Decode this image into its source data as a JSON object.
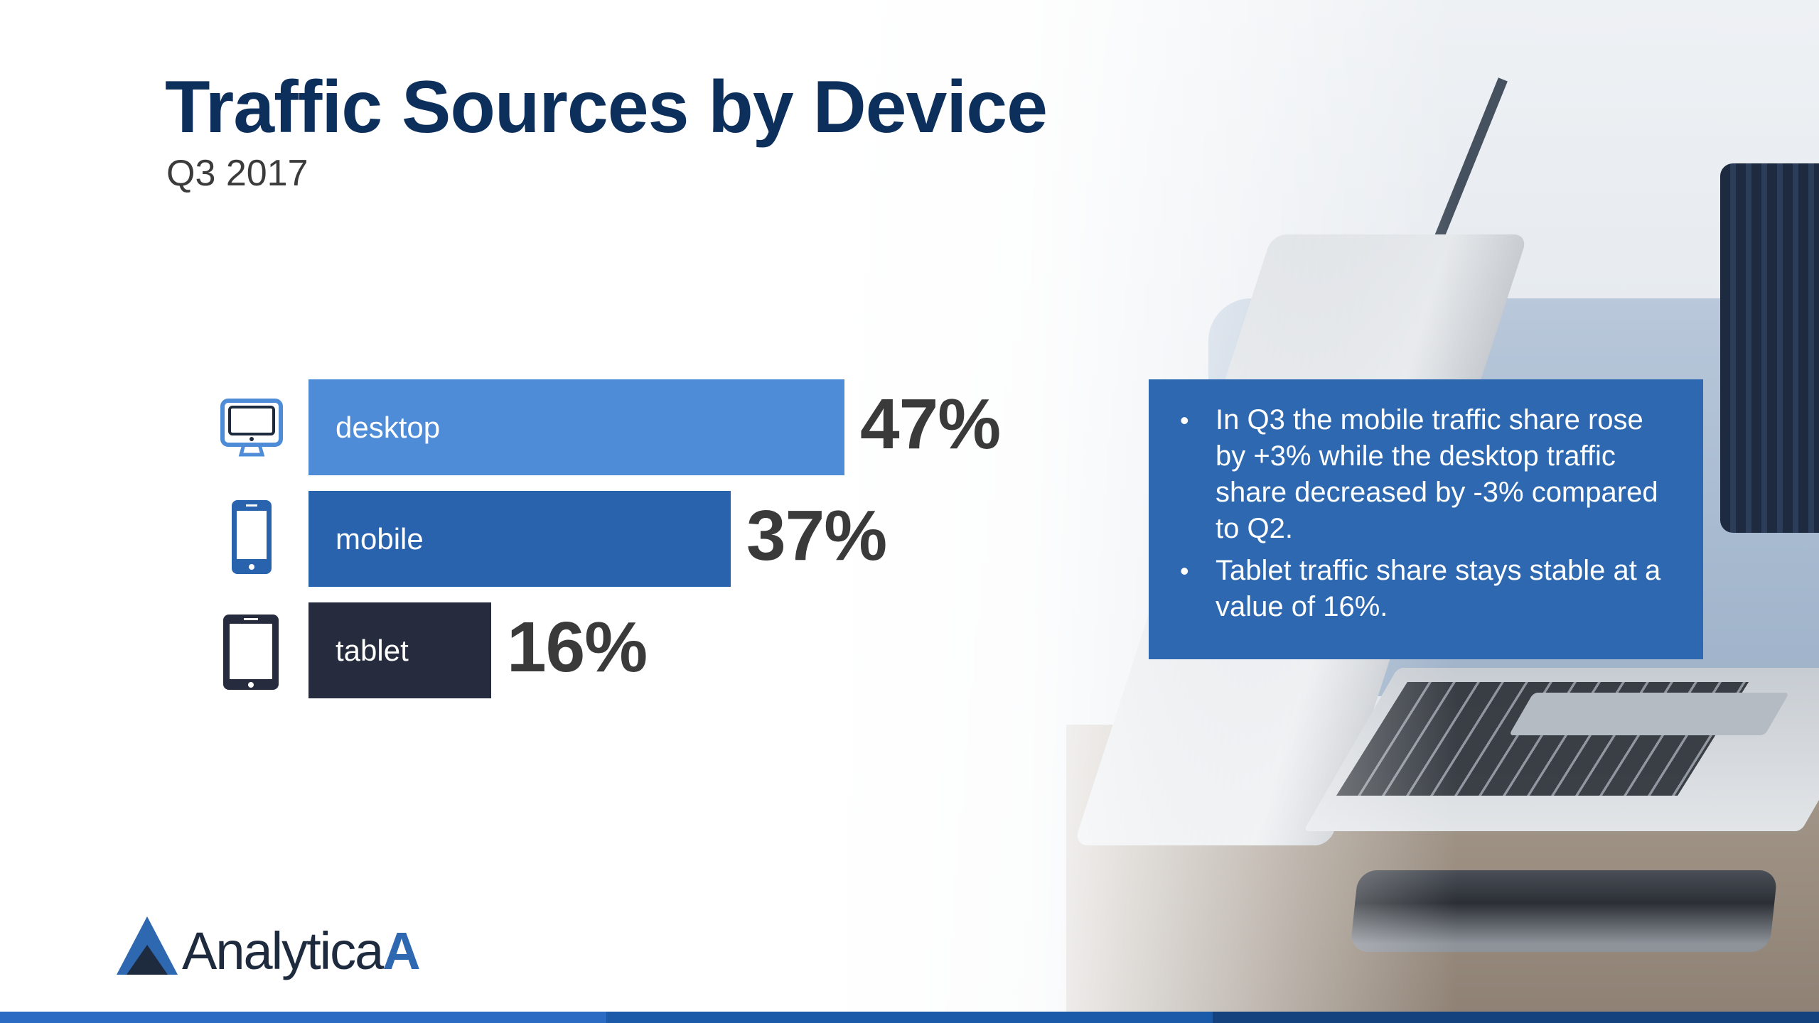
{
  "slide": {
    "title": "Traffic Sources by Device",
    "subtitle": "Q3 2017"
  },
  "chart_data": {
    "type": "bar",
    "orientation": "horizontal",
    "categories": [
      "desktop",
      "mobile",
      "tablet"
    ],
    "values": [
      47,
      37,
      16
    ],
    "value_labels": [
      "47%",
      "37%",
      "16%"
    ],
    "colors": [
      "#4f8cd8",
      "#2963ad",
      "#262c3e"
    ],
    "icons": [
      "desktop-monitor-icon",
      "mobile-phone-icon",
      "tablet-icon"
    ],
    "grid": false,
    "legend": "none"
  },
  "info_box": {
    "bullets": [
      "In Q3 the mobile traffic share rose by +3% while the desktop traffic share decreased by -3% compared to Q2.",
      "Tablet traffic share stays stable at a value of 16%."
    ],
    "background": "#2d68b1"
  },
  "logo": {
    "text_main": "Analytica",
    "text_accent": "A"
  },
  "bottom_bar_colors": [
    "#2b6bc4",
    "#1a5aa8",
    "#14427e"
  ]
}
